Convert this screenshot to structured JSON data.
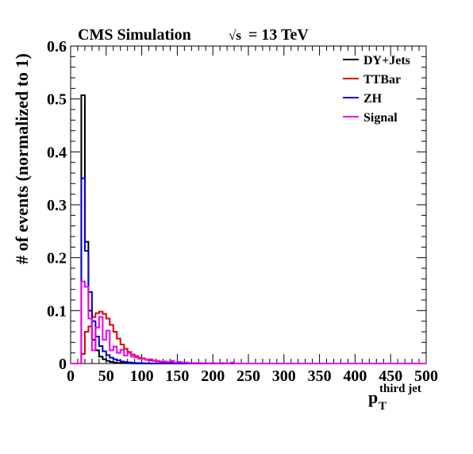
{
  "chart_data": {
    "type": "step-histogram",
    "title_left": "CMS Simulation",
    "title_right": "= 13 TeV",
    "title_sqrt": "√s",
    "ylabel": "# of events (normalized to 1)",
    "xlabel": "p",
    "xlabel_sub": "T",
    "xlabel_sup": "third jet",
    "xlim": [
      0,
      500
    ],
    "ylim": [
      0,
      0.6
    ],
    "bin_width": 5,
    "bin_start": 0,
    "x_ticks": [
      "0",
      "50",
      "100",
      "150",
      "200",
      "250",
      "300",
      "350",
      "400",
      "450",
      "500"
    ],
    "x_tick_values": [
      0,
      50,
      100,
      150,
      200,
      250,
      300,
      350,
      400,
      450,
      500
    ],
    "y_ticks": [
      "0",
      "0.1",
      "0.2",
      "0.3",
      "0.4",
      "0.5",
      "0.6"
    ],
    "y_tick_values": [
      0,
      0.1,
      0.2,
      0.3,
      0.4,
      0.5,
      0.6
    ],
    "legend_position": "top-right",
    "series": [
      {
        "name": "DY+Jets",
        "color": "#000000",
        "values": [
          0,
          0,
          0,
          0.507,
          0.23,
          0.1,
          0.045,
          0.025,
          0.013,
          0.008,
          0.005,
          0.003,
          0.002,
          0.001,
          0.001,
          0.0005,
          0.0005,
          0.0003,
          0.0002
        ]
      },
      {
        "name": "TTBar",
        "color": "#dd0000",
        "values": [
          0,
          0,
          0,
          0.018,
          0.06,
          0.07,
          0.088,
          0.095,
          0.098,
          0.094,
          0.085,
          0.073,
          0.06,
          0.047,
          0.036,
          0.028,
          0.022,
          0.017,
          0.014,
          0.011,
          0.009,
          0.007,
          0.006,
          0.005,
          0.004,
          0.003,
          0.003,
          0.002,
          0.002,
          0.001,
          0.001,
          0.001,
          0.0008,
          0.0006,
          0.0005,
          0.0004,
          0.0003,
          0.0002,
          0.0002,
          0.0001
        ]
      },
      {
        "name": "ZH",
        "color": "#0000cc",
        "values": [
          0,
          0,
          0,
          0.35,
          0.213,
          0.135,
          0.08,
          0.051,
          0.033,
          0.023,
          0.016,
          0.011,
          0.008,
          0.006,
          0.004,
          0.003,
          0.002,
          0.0015,
          0.001,
          0.0008,
          0.0006,
          0.0004,
          0.0003,
          0.0002
        ]
      },
      {
        "name": "Signal",
        "color": "#ee00ee",
        "values": [
          0,
          0,
          0,
          0.155,
          0.145,
          0.085,
          0.025,
          0.068,
          0.088,
          0.045,
          0.062,
          0.025,
          0.032,
          0.02,
          0.026,
          0.015,
          0.02,
          0.013,
          0.012,
          0.009,
          0.01,
          0.007,
          0.008,
          0.006,
          0.005,
          0.004,
          0.004,
          0.003,
          0.005,
          0.002,
          0.003,
          0.002,
          0.002,
          0.001,
          0.001,
          0.001,
          0.001,
          0.0008,
          0.0006,
          0.0005,
          0.0008,
          0.0004,
          0.001,
          0.0003,
          0.0002,
          0.002,
          0.0002
        ]
      }
    ]
  }
}
